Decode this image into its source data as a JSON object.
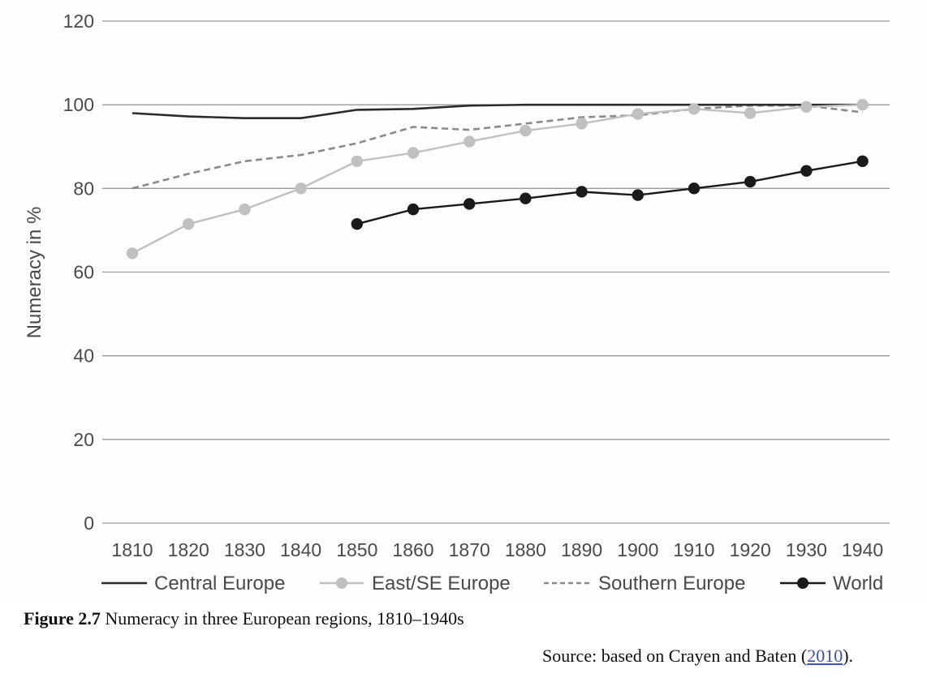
{
  "chart_data": {
    "type": "line",
    "title": "",
    "xlabel": "",
    "ylabel": "Numeracy in %",
    "ylim": [
      0,
      120
    ],
    "yticks": [
      "0",
      "20",
      "40",
      "60",
      "80",
      "100",
      "120"
    ],
    "grid": "horizontal",
    "legend_position": "bottom",
    "categories": [
      "1810",
      "1820",
      "1830",
      "1840",
      "1850",
      "1860",
      "1870",
      "1880",
      "1890",
      "1900",
      "1910",
      "1920",
      "1930",
      "1940"
    ],
    "series": [
      {
        "name": "Central Europe",
        "style": "solid",
        "marker": "none",
        "color": "#2b2b2b",
        "values": [
          98,
          97.2,
          96.8,
          96.8,
          98.8,
          99,
          99.8,
          100,
          100,
          100,
          100,
          100,
          100,
          100
        ]
      },
      {
        "name": "East/SE Europe",
        "style": "solid",
        "marker": "circle",
        "color": "#c0c0c0",
        "values": [
          64.5,
          71.5,
          75,
          80,
          86.5,
          88.5,
          91.2,
          93.8,
          95.5,
          97.8,
          99,
          98,
          99.5,
          100
        ]
      },
      {
        "name": "Southern Europe",
        "style": "dashed",
        "marker": "none",
        "color": "#8a8a8a",
        "values": [
          80,
          83.5,
          86.5,
          88,
          90.8,
          94.7,
          94,
          95.5,
          97,
          97.5,
          99,
          99.8,
          99.8,
          98.2
        ]
      },
      {
        "name": "World",
        "style": "solid",
        "marker": "circle",
        "color": "#1a1a1a",
        "values": [
          null,
          null,
          null,
          null,
          71.5,
          75,
          76.3,
          77.6,
          79.2,
          78.4,
          80,
          81.6,
          84.2,
          86.5
        ]
      }
    ]
  },
  "caption": {
    "label": "Figure 2.7",
    "text": " Numeracy in three European regions, 1810–1940s"
  },
  "source": {
    "prefix": "Source: based on Crayen and Baten (",
    "link_text": "2010",
    "suffix": ")."
  }
}
